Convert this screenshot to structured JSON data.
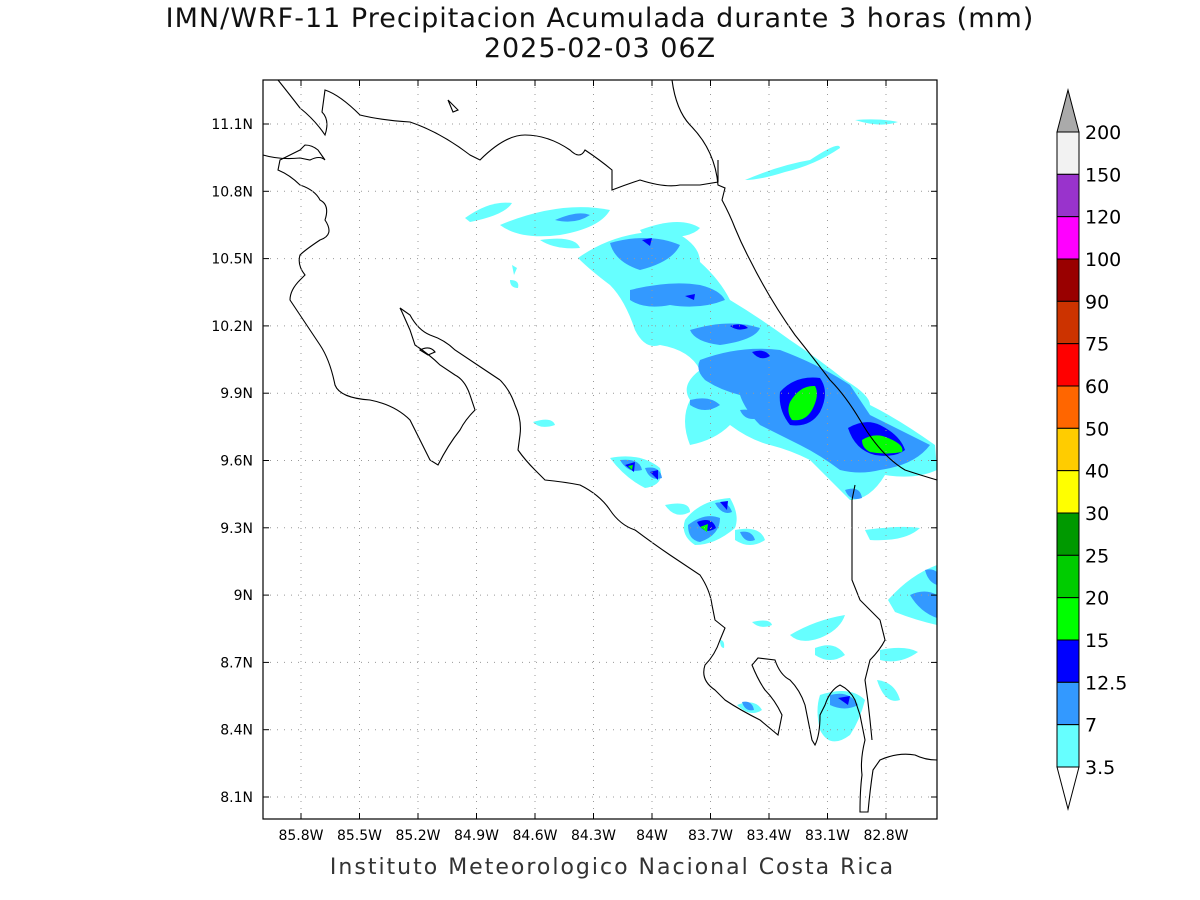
{
  "title": "IMN/WRF-11 Precipitacion Acumulada durante 3 horas (mm)",
  "subtitle": "2025-02-03 06Z",
  "footer": "Instituto Meteorologico Nacional Costa Rica",
  "axes": {
    "x_ticks": [
      "85.8W",
      "85.5W",
      "85.2W",
      "84.9W",
      "84.6W",
      "84.3W",
      "84W",
      "83.7W",
      "83.4W",
      "83.1W",
      "82.8W"
    ],
    "y_ticks": [
      "11.1N",
      "10.8N",
      "10.5N",
      "10.2N",
      "9.9N",
      "9.6N",
      "9.3N",
      "9N",
      "8.7N",
      "8.4N",
      "8.1N"
    ],
    "grid": "dotted"
  },
  "colorbar": {
    "labels": [
      "200",
      "150",
      "120",
      "100",
      "90",
      "75",
      "60",
      "50",
      "40",
      "30",
      "25",
      "20",
      "15",
      "12.5",
      "7",
      "3.5"
    ],
    "colors": [
      "#f2f2f2",
      "#9933cc",
      "#ff00ff",
      "#990000",
      "#cc3300",
      "#ff0000",
      "#ff6600",
      "#ffcc00",
      "#ffff00",
      "#009900",
      "#00cc00",
      "#00ff00",
      "#0000ff",
      "#3399ff",
      "#66ffff"
    ],
    "top_arrow_color": "#aaaaaa",
    "bottom_arrow_color": "#ffffff"
  }
}
